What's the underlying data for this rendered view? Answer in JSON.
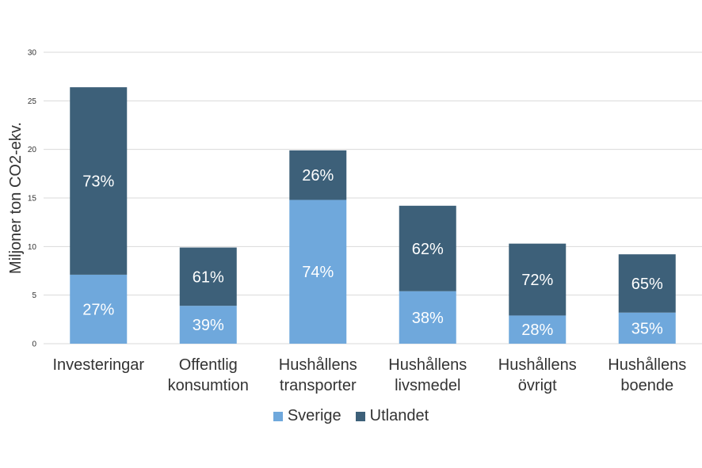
{
  "colors": {
    "sverige": "#6fa8dc",
    "utlandet": "#3d6079",
    "grid": "#d9d9d9",
    "text": "#333333",
    "label": "#ffffff"
  },
  "chart_data": {
    "type": "bar",
    "stacked": true,
    "title": "",
    "ylabel": "Miljoner ton CO2-ekv.",
    "ylim": [
      0,
      30
    ],
    "yticks": [
      "0",
      "5",
      "10",
      "15",
      "20",
      "25",
      "30"
    ],
    "grid": true,
    "legend_position": "bottom",
    "categories": [
      [
        "Investeringar"
      ],
      [
        "Offentlig",
        "konsumtion"
      ],
      [
        "Hushållens",
        "transporter"
      ],
      [
        "Hushållens",
        "livsmedel"
      ],
      [
        "Hushållens",
        "övrigt"
      ],
      [
        "Hushållens",
        "boende"
      ]
    ],
    "series": [
      {
        "name": "Sverige",
        "color": "#6fa8dc",
        "values": [
          7.1,
          3.9,
          14.8,
          5.4,
          2.9,
          3.2
        ],
        "labels": [
          "27%",
          "39%",
          "74%",
          "38%",
          "28%",
          "35%"
        ]
      },
      {
        "name": "Utlandet",
        "color": "#3d6079",
        "values": [
          19.3,
          6.0,
          5.1,
          8.8,
          7.4,
          6.0
        ],
        "labels": [
          "73%",
          "61%",
          "26%",
          "62%",
          "72%",
          "65%"
        ]
      }
    ]
  }
}
